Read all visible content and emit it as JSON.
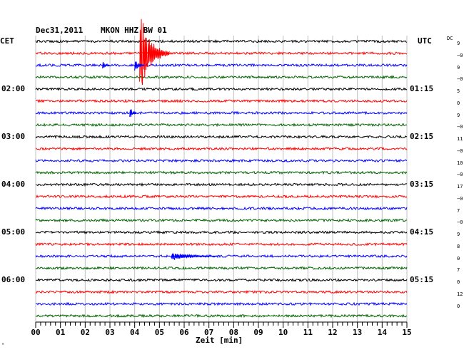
{
  "header": {
    "date": "Dec31,2011",
    "station": "MKON HHZ BW 01"
  },
  "left_zone": "CET",
  "right_zone": "UTC",
  "dc_label": "DC",
  "colors": {
    "trace_cycle": [
      "#000000",
      "#ff0000",
      "#0000ff",
      "#006400"
    ],
    "grid": "#c0c0c0",
    "axis": "#000000"
  },
  "chart_data": {
    "type": "line",
    "title": "Dec31,2011   MKON HHZ BW 01",
    "xlabel": "Zeit [min]",
    "ylabel": "",
    "xlim": [
      0,
      15
    ],
    "x_ticks": [
      "00",
      "01",
      "02",
      "03",
      "04",
      "05",
      "06",
      "07",
      "08",
      "09",
      "10",
      "11",
      "12",
      "13",
      "14",
      "15"
    ],
    "minutes_per_trace": 15,
    "trace_count": 24,
    "left_time_labels": [
      {
        "trace": 4,
        "label": "02:00"
      },
      {
        "trace": 8,
        "label": "03:00"
      },
      {
        "trace": 12,
        "label": "04:00"
      },
      {
        "trace": 16,
        "label": "05:00"
      },
      {
        "trace": 20,
        "label": "06:00"
      }
    ],
    "right_time_labels": [
      {
        "trace": 4,
        "label": "01:15"
      },
      {
        "trace": 8,
        "label": "02:15"
      },
      {
        "trace": 12,
        "label": "03:15"
      },
      {
        "trace": 16,
        "label": "04:15"
      },
      {
        "trace": 20,
        "label": "05:15"
      }
    ],
    "dc_offsets": [
      "9",
      "−0",
      "9",
      "−0",
      "5",
      "0",
      "9",
      "−0",
      "11",
      "−0",
      "10",
      "−0",
      "17",
      "−0",
      "7",
      "−0",
      "9",
      "8",
      "0",
      "7",
      "0",
      "12",
      "0"
    ],
    "events": [
      {
        "trace": 1,
        "minute": 4.2,
        "amplitude": "very large",
        "duration_min": 1.2
      },
      {
        "trace": 2,
        "minute": 2.7,
        "amplitude": "small",
        "duration_min": 0.3
      },
      {
        "trace": 2,
        "minute": 4.0,
        "amplitude": "medium",
        "duration_min": 0.4
      },
      {
        "trace": 6,
        "minute": 3.8,
        "amplitude": "medium",
        "duration_min": 0.3
      },
      {
        "trace": 18,
        "minute": 5.5,
        "amplitude": "small",
        "duration_min": 1.8
      }
    ]
  },
  "footer_mark": "ᵃ"
}
